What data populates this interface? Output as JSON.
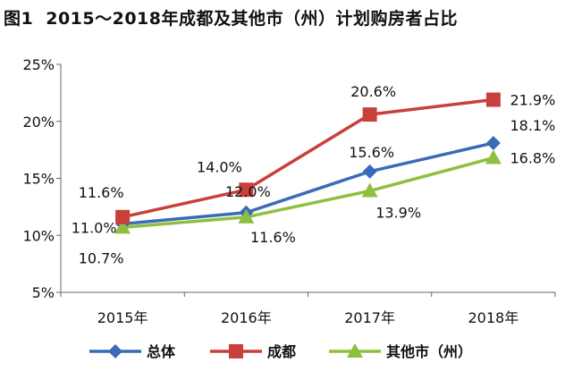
{
  "chart_data": {
    "type": "line",
    "title_number": "图1",
    "title": "2015～2018年成都及其他市（州）计划购房者占比",
    "categories": [
      "2015年",
      "2016年",
      "2017年",
      "2018年"
    ],
    "ylim": [
      5,
      25
    ],
    "y_ticks": [
      5,
      10,
      15,
      20,
      25
    ],
    "y_tick_labels": [
      "5%",
      "10%",
      "15%",
      "20%",
      "25%"
    ],
    "grid": false,
    "legend_position": "bottom",
    "series": [
      {
        "name": "总体",
        "values": [
          11.0,
          12.0,
          15.6,
          18.1
        ],
        "labels": [
          "11.0%",
          "12.0%",
          "15.6%",
          "18.1%"
        ],
        "color": "#3a6bb8",
        "marker": "diamond"
      },
      {
        "name": "成都",
        "values": [
          11.6,
          14.0,
          20.6,
          21.9
        ],
        "labels": [
          "11.6%",
          "14.0%",
          "20.6%",
          "21.9%"
        ],
        "color": "#c8403b",
        "marker": "square"
      },
      {
        "name": "其他市（州）",
        "values": [
          10.7,
          11.6,
          13.9,
          16.8
        ],
        "labels": [
          "10.7%",
          "11.6%",
          "13.9%",
          "16.8%"
        ],
        "color": "#8fbf3f",
        "marker": "triangle"
      }
    ]
  }
}
